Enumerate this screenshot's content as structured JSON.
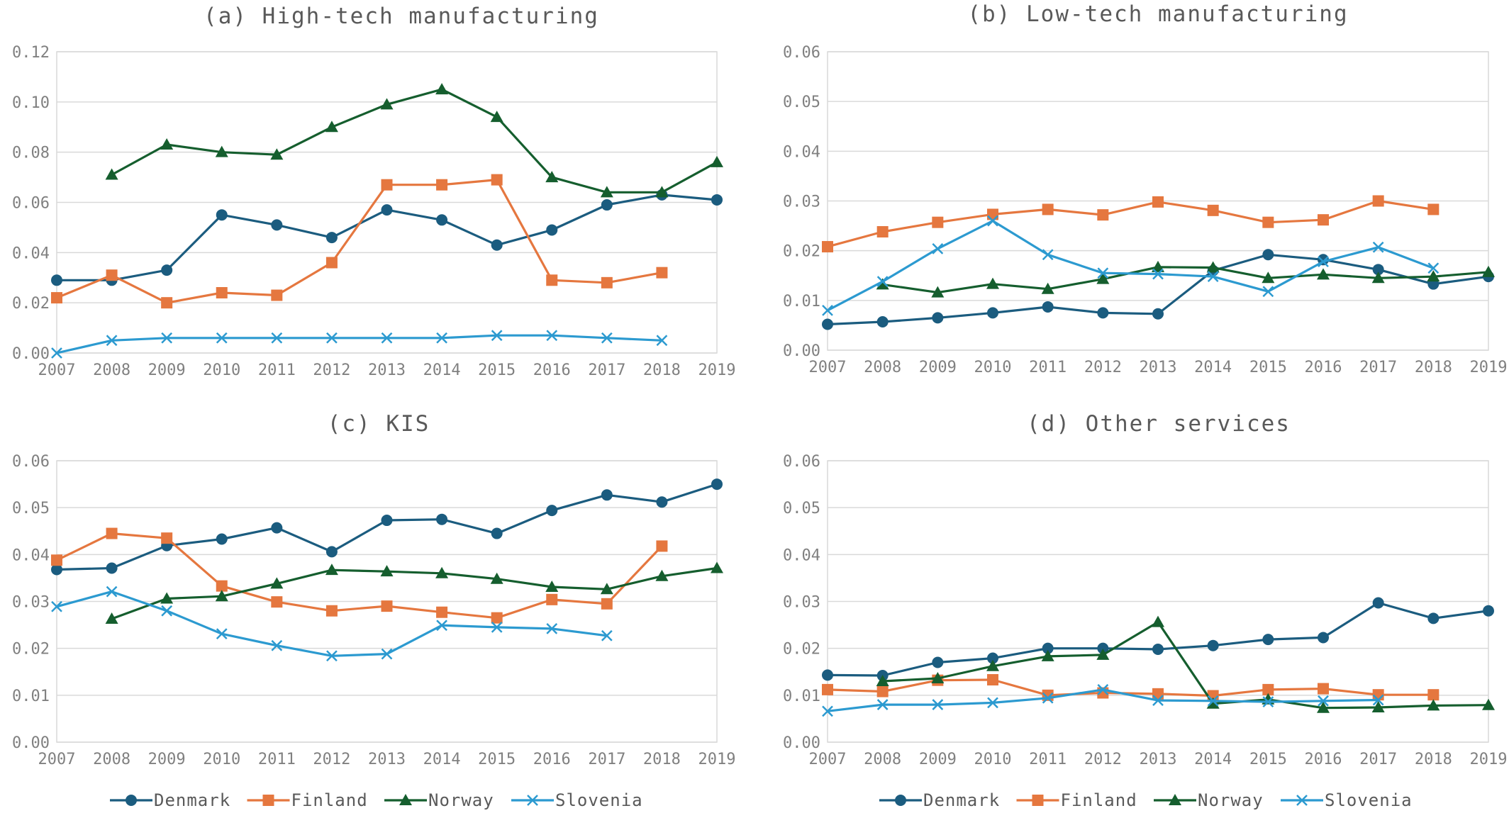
{
  "colors": {
    "Denmark": "#1b5c7f",
    "Finland": "#e5773f",
    "Norway": "#155e2e",
    "Slovenia": "#2c9ad0"
  },
  "markers": {
    "Denmark": "circle",
    "Finland": "square",
    "Norway": "triangle",
    "Slovenia": "cross"
  },
  "legend": [
    "Denmark",
    "Finland",
    "Norway",
    "Slovenia"
  ],
  "chart_data": [
    {
      "type": "line",
      "title": "(a) High-tech manufacturing",
      "x": [
        "2007",
        "2008",
        "2009",
        "2010",
        "2011",
        "2012",
        "2013",
        "2014",
        "2015",
        "2016",
        "2017",
        "2018",
        "2019"
      ],
      "ylim": [
        0,
        0.12
      ],
      "yticks": [
        "0.00",
        "0.02",
        "0.04",
        "0.06",
        "0.08",
        "0.10",
        "0.12"
      ],
      "series": [
        {
          "name": "Denmark",
          "values": [
            0.029,
            0.029,
            0.033,
            0.055,
            0.051,
            0.046,
            0.057,
            0.053,
            0.043,
            0.049,
            0.059,
            0.063,
            0.061
          ]
        },
        {
          "name": "Finland",
          "values": [
            0.022,
            0.031,
            0.02,
            0.024,
            0.023,
            0.036,
            0.067,
            0.067,
            0.069,
            0.029,
            0.028,
            0.032,
            null
          ]
        },
        {
          "name": "Norway",
          "values": [
            null,
            0.071,
            0.083,
            0.08,
            0.079,
            0.09,
            0.099,
            0.105,
            0.094,
            0.07,
            0.064,
            0.064,
            0.076
          ]
        },
        {
          "name": "Slovenia",
          "values": [
            0.0,
            0.005,
            0.006,
            0.006,
            0.006,
            0.006,
            0.006,
            0.006,
            0.007,
            0.007,
            0.006,
            0.005,
            null
          ]
        }
      ]
    },
    {
      "type": "line",
      "title": "(b) Low-tech manufacturing",
      "x": [
        "2007",
        "2008",
        "2009",
        "2010",
        "2011",
        "2012",
        "2013",
        "2014",
        "2015",
        "2016",
        "2017",
        "2018",
        "2019"
      ],
      "ylim": [
        0,
        0.06
      ],
      "yticks": [
        "0.00",
        "0.01",
        "0.02",
        "0.03",
        "0.04",
        "0.05",
        "0.06"
      ],
      "series": [
        {
          "name": "Denmark",
          "values": [
            0.0052,
            0.0057,
            0.0065,
            0.0075,
            0.0087,
            0.0075,
            0.0073,
            0.016,
            0.0192,
            0.0182,
            0.0162,
            0.0133,
            0.0148
          ]
        },
        {
          "name": "Finland",
          "values": [
            0.0208,
            0.0238,
            0.0257,
            0.0273,
            0.0283,
            0.0272,
            0.0298,
            0.0281,
            0.0257,
            0.0262,
            0.03,
            0.0283,
            null
          ]
        },
        {
          "name": "Norway",
          "values": [
            null,
            0.0132,
            0.0116,
            0.0133,
            0.0123,
            0.0143,
            0.0167,
            0.0166,
            0.0145,
            0.0152,
            0.0145,
            0.0148,
            0.0157
          ]
        },
        {
          "name": "Slovenia",
          "values": [
            0.008,
            0.0138,
            0.0204,
            0.026,
            0.0192,
            0.0155,
            0.0153,
            0.0148,
            0.0118,
            0.0178,
            0.0207,
            0.0165,
            null
          ]
        }
      ]
    },
    {
      "type": "line",
      "title": "(c) KIS",
      "x": [
        "2007",
        "2008",
        "2009",
        "2010",
        "2011",
        "2012",
        "2013",
        "2014",
        "2015",
        "2016",
        "2017",
        "2018",
        "2019"
      ],
      "ylim": [
        0,
        0.06
      ],
      "yticks": [
        "0.00",
        "0.01",
        "0.02",
        "0.03",
        "0.04",
        "0.05",
        "0.06"
      ],
      "series": [
        {
          "name": "Denmark",
          "values": [
            0.0368,
            0.0371,
            0.0419,
            0.0433,
            0.0457,
            0.0406,
            0.0473,
            0.0475,
            0.0445,
            0.0494,
            0.0527,
            0.0512,
            0.055
          ]
        },
        {
          "name": "Finland",
          "values": [
            0.0388,
            0.0445,
            0.0435,
            0.0333,
            0.0299,
            0.028,
            0.029,
            0.0277,
            0.0265,
            0.0304,
            0.0295,
            0.0418,
            null
          ]
        },
        {
          "name": "Norway",
          "values": [
            null,
            0.0263,
            0.0306,
            0.0311,
            0.0338,
            0.0367,
            0.0364,
            0.036,
            0.0348,
            0.0331,
            0.0326,
            0.0354,
            0.0371
          ]
        },
        {
          "name": "Slovenia",
          "values": [
            0.0289,
            0.0321,
            0.028,
            0.0231,
            0.0206,
            0.0184,
            0.0188,
            0.0249,
            0.0245,
            0.0242,
            0.0227,
            null,
            null
          ]
        }
      ]
    },
    {
      "type": "line",
      "title": "(d) Other services",
      "x": [
        "2007",
        "2008",
        "2009",
        "2010",
        "2011",
        "2012",
        "2013",
        "2014",
        "2015",
        "2016",
        "2017",
        "2018",
        "2019"
      ],
      "ylim": [
        0,
        0.06
      ],
      "yticks": [
        "0.00",
        "0.01",
        "0.02",
        "0.03",
        "0.04",
        "0.05",
        "0.06"
      ],
      "series": [
        {
          "name": "Denmark",
          "values": [
            0.0143,
            0.0142,
            0.017,
            0.0179,
            0.02,
            0.02,
            0.0198,
            0.0206,
            0.0219,
            0.0223,
            0.0297,
            0.0264,
            0.028
          ]
        },
        {
          "name": "Finland",
          "values": [
            0.0112,
            0.0108,
            0.0132,
            0.0133,
            0.01,
            0.0105,
            0.0103,
            0.0099,
            0.0112,
            0.0114,
            0.0101,
            0.0101,
            null
          ]
        },
        {
          "name": "Norway",
          "values": [
            null,
            0.013,
            0.0136,
            0.0162,
            0.0183,
            0.0186,
            0.0256,
            0.0082,
            0.0091,
            0.0073,
            0.0074,
            0.0078,
            0.0079
          ]
        },
        {
          "name": "Slovenia",
          "values": [
            0.0066,
            0.008,
            0.008,
            0.0084,
            0.0094,
            0.0112,
            0.0089,
            0.0088,
            0.0086,
            0.0088,
            0.009,
            null,
            null
          ]
        }
      ]
    }
  ]
}
